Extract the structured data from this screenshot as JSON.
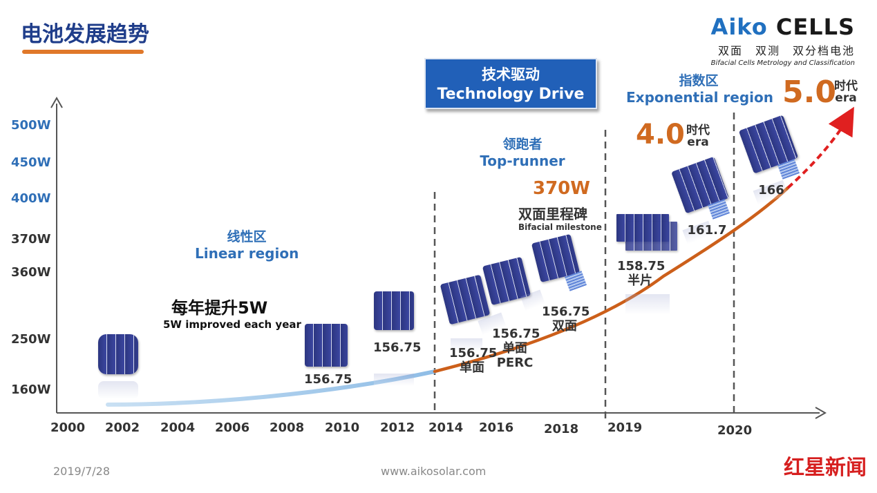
{
  "title": "电池发展趋势",
  "logo": {
    "name_a": "Aiko",
    "name_b": "CELLS",
    "tagline_cn": "双面　双测　双分档电池",
    "tagline_en": "Bifacial Cells Metrology and Classification"
  },
  "tech_drive": {
    "cn": "技术驱动",
    "en": "Technology Drive"
  },
  "regions": {
    "linear": {
      "cn": "线性区",
      "en": "Linear region"
    },
    "top_runner": {
      "cn": "领跑者",
      "en": "Top-runner"
    },
    "exponential": {
      "cn": "指数区",
      "en": "Exponential region"
    }
  },
  "y_axis_labels": [
    {
      "text": "500W",
      "color": "#2f6fb7"
    },
    {
      "text": "450W",
      "color": "#2f6fb7"
    },
    {
      "text": "400W",
      "color": "#2f6fb7"
    },
    {
      "text": "370W",
      "color": "#333333"
    },
    {
      "text": "360W",
      "color": "#333333"
    },
    {
      "text": "250W",
      "color": "#333333"
    },
    {
      "text": "160W",
      "color": "#333333"
    }
  ],
  "x_axis_labels": [
    "2000",
    "2002",
    "2004",
    "2006",
    "2008",
    "2010",
    "2012",
    "2014",
    "2016",
    "2018",
    "2019",
    "2020"
  ],
  "improvement": {
    "cn": "每年提升5W",
    "en": "5W improved each year"
  },
  "milestone": {
    "power": "370W",
    "cn": "双面里程碑",
    "en": "Bifacial milestone"
  },
  "eras": {
    "era4": {
      "num": "4.0",
      "cn": "时代",
      "en": "era"
    },
    "era5": {
      "num": "5.0",
      "cn": "时代",
      "en": "era"
    }
  },
  "cells": [
    {
      "line1": "156.75",
      "line2": "",
      "line3": ""
    },
    {
      "line1": "156.75",
      "line2": "",
      "line3": ""
    },
    {
      "line1": "156.75",
      "line2": "单面",
      "line3": ""
    },
    {
      "line1": "156.75",
      "line2": "单面",
      "line3": "PERC"
    },
    {
      "line1": "156.75",
      "line2": "双面",
      "line3": ""
    },
    {
      "line1": "158.75",
      "line2": "半片",
      "line3": ""
    },
    {
      "line1": "161.7",
      "line2": "",
      "line3": ""
    },
    {
      "line1": "166",
      "line2": "",
      "line3": ""
    }
  ],
  "footer": {
    "date": "2019/7/28",
    "url": "www.aikosolar.com",
    "news": "红星新闻"
  },
  "colors": {
    "accent_orange": "#e0782a",
    "title_blue": "#1f3d8a",
    "region_blue": "#2f6fb7",
    "box_blue": "#2160b8",
    "curve_light": "#a9cdea",
    "curve_orange": "#cc5f1a",
    "arrow_red": "#e02020"
  }
}
